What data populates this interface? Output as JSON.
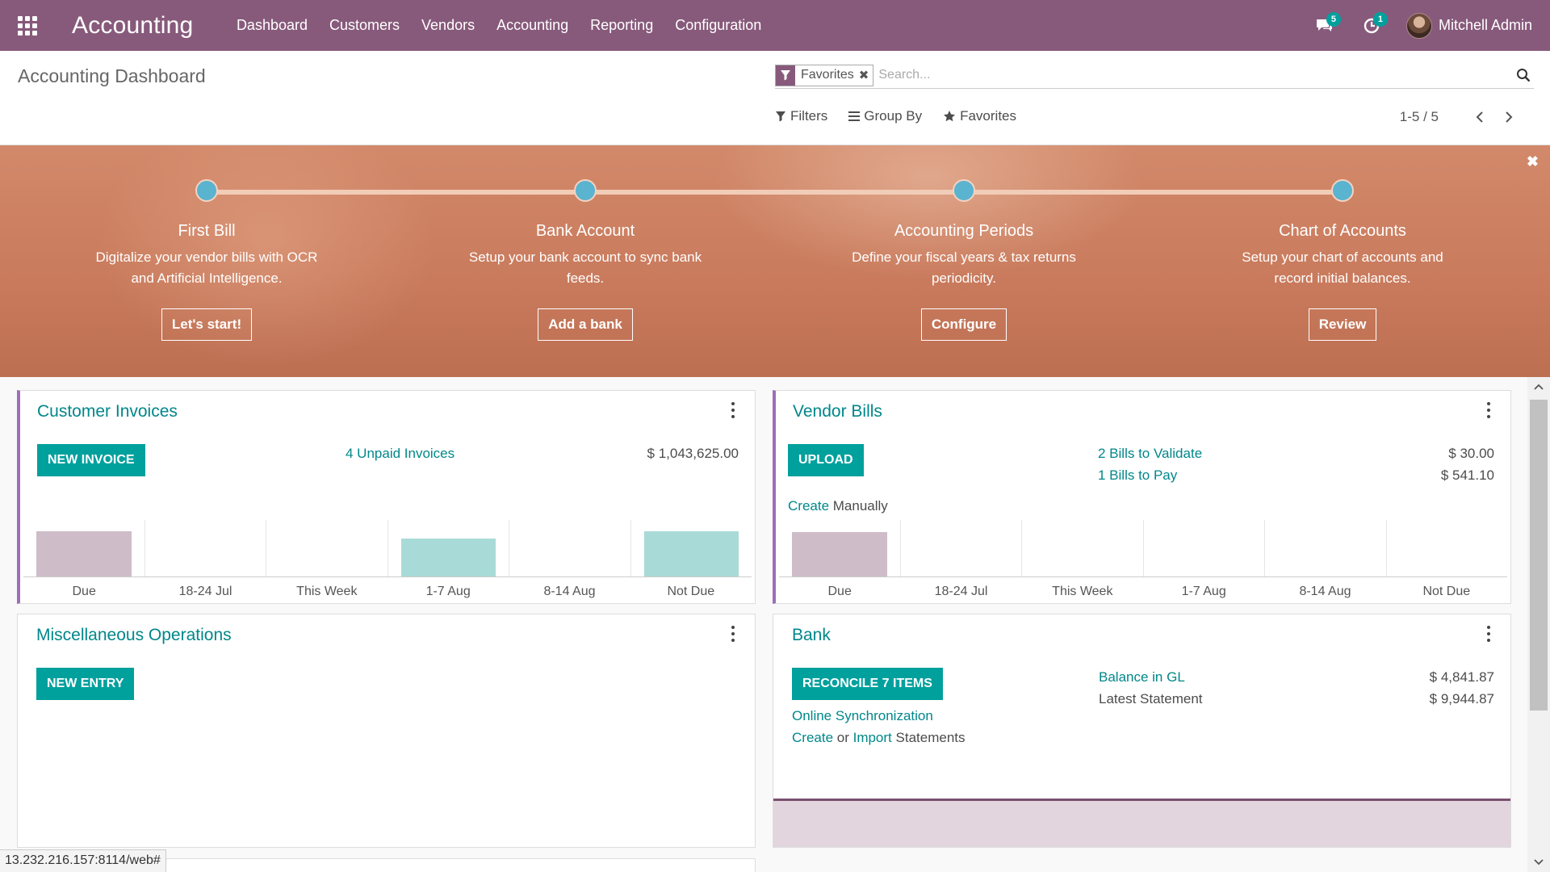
{
  "navbar": {
    "brand": "Accounting",
    "menu": [
      "Dashboard",
      "Customers",
      "Vendors",
      "Accounting",
      "Reporting",
      "Configuration"
    ],
    "messages_count": "5",
    "activities_count": "1",
    "user_name": "Mitchell Admin"
  },
  "control": {
    "title": "Accounting Dashboard",
    "facet_label": "Favorites",
    "search_placeholder": "Search...",
    "filters_label": "Filters",
    "groupby_label": "Group By",
    "favorites_label": "Favorites",
    "pager": "1-5 / 5"
  },
  "onboarding": {
    "steps": [
      {
        "title": "First Bill",
        "desc": "Digitalize your vendor bills with OCR and Artificial Intelligence.",
        "button": "Let's start!"
      },
      {
        "title": "Bank Account",
        "desc": "Setup your bank account to sync bank feeds.",
        "button": "Add a bank"
      },
      {
        "title": "Accounting Periods",
        "desc": "Define your fiscal years & tax returns periodicity.",
        "button": "Configure"
      },
      {
        "title": "Chart of Accounts",
        "desc": "Setup your chart of accounts and record initial balances.",
        "button": "Review"
      }
    ]
  },
  "cards": {
    "customer_invoices": {
      "title": "Customer Invoices",
      "button": "NEW INVOICE",
      "unpaid_link": "4 Unpaid Invoices",
      "unpaid_amount": "$ 1,043,625.00",
      "graph_labels": [
        "Due",
        "18-24 Jul",
        "This Week",
        "1-7 Aug",
        "8-14 Aug",
        "Not Due"
      ]
    },
    "vendor_bills": {
      "title": "Vendor Bills",
      "button": "UPLOAD",
      "create_link": "Create",
      "create_suffix": " Manually",
      "validate_link": "2 Bills to Validate",
      "validate_amount": "$ 30.00",
      "pay_link": "1 Bills to Pay",
      "pay_amount": "$ 541.10",
      "graph_labels": [
        "Due",
        "18-24 Jul",
        "This Week",
        "1-7 Aug",
        "8-14 Aug",
        "Not Due"
      ]
    },
    "misc": {
      "title": "Miscellaneous Operations",
      "button": "NEW ENTRY"
    },
    "bank": {
      "title": "Bank",
      "button": "RECONCILE 7 ITEMS",
      "sync_link": "Online Synchronization",
      "create_link": "Create",
      "or_text": " or ",
      "import_link": "Import",
      "statements_text": " Statements",
      "balance_label": "Balance in GL",
      "balance_amount": "$ 4,841.87",
      "statement_label": "Latest Statement",
      "statement_amount": "$ 9,944.87"
    }
  },
  "colors": {
    "brand": "#875a7b",
    "teal": "#00a09d",
    "bar_past": "#cfbcc9",
    "bar_future": "#a8dbd7"
  },
  "statusbar": "13.232.216.157:8114/web#"
}
